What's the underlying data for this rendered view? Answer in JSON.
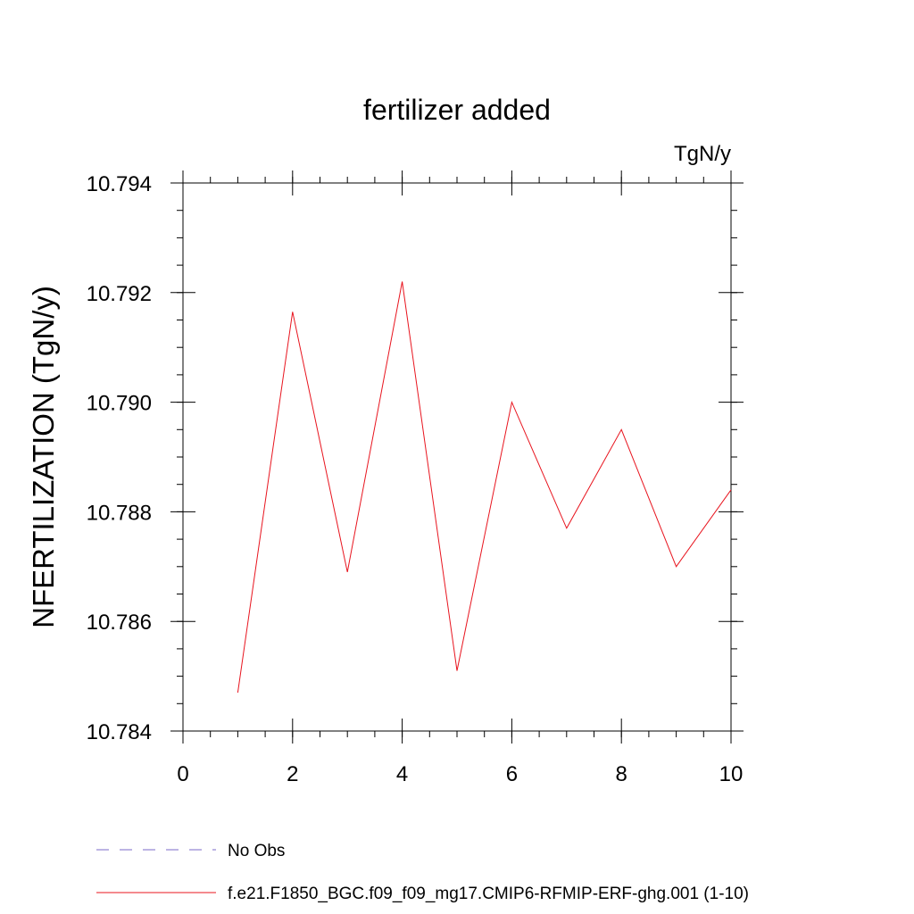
{
  "chart_data": {
    "type": "line",
    "title": "fertilizer added",
    "units_label": "TgN/y",
    "ylabel": "NFERTILIZATION  (TgN/y)",
    "xlabel": "",
    "xlim": [
      0,
      10
    ],
    "ylim": [
      10.784,
      10.794
    ],
    "x_ticks": [
      0,
      2,
      4,
      6,
      8,
      10
    ],
    "x_tick_labels": [
      "0",
      "2",
      "4",
      "6",
      "8",
      "10"
    ],
    "y_ticks": [
      10.784,
      10.786,
      10.788,
      10.79,
      10.792,
      10.794
    ],
    "y_tick_labels": [
      "10.784",
      "10.786",
      "10.788",
      "10.790",
      "10.792",
      "10.794"
    ],
    "grid": false,
    "legend_position": "bottom-left",
    "legend": [
      {
        "label": "No Obs",
        "color": "#7b68c8",
        "dash": "dashed"
      },
      {
        "label": "f.e21.F1850_BGC.f09_f09_mg17.CMIP6-RFMIP-ERF-ghg.001 (1-10)",
        "color": "#e8141e",
        "dash": "solid"
      }
    ],
    "series": [
      {
        "color": "#e8141e",
        "x": [
          1,
          2,
          3,
          4,
          5,
          6,
          7,
          8,
          9,
          10
        ],
        "y": [
          10.7847,
          10.79165,
          10.7869,
          10.7922,
          10.7851,
          10.79,
          10.7877,
          10.7895,
          10.787,
          10.7884
        ]
      }
    ]
  }
}
